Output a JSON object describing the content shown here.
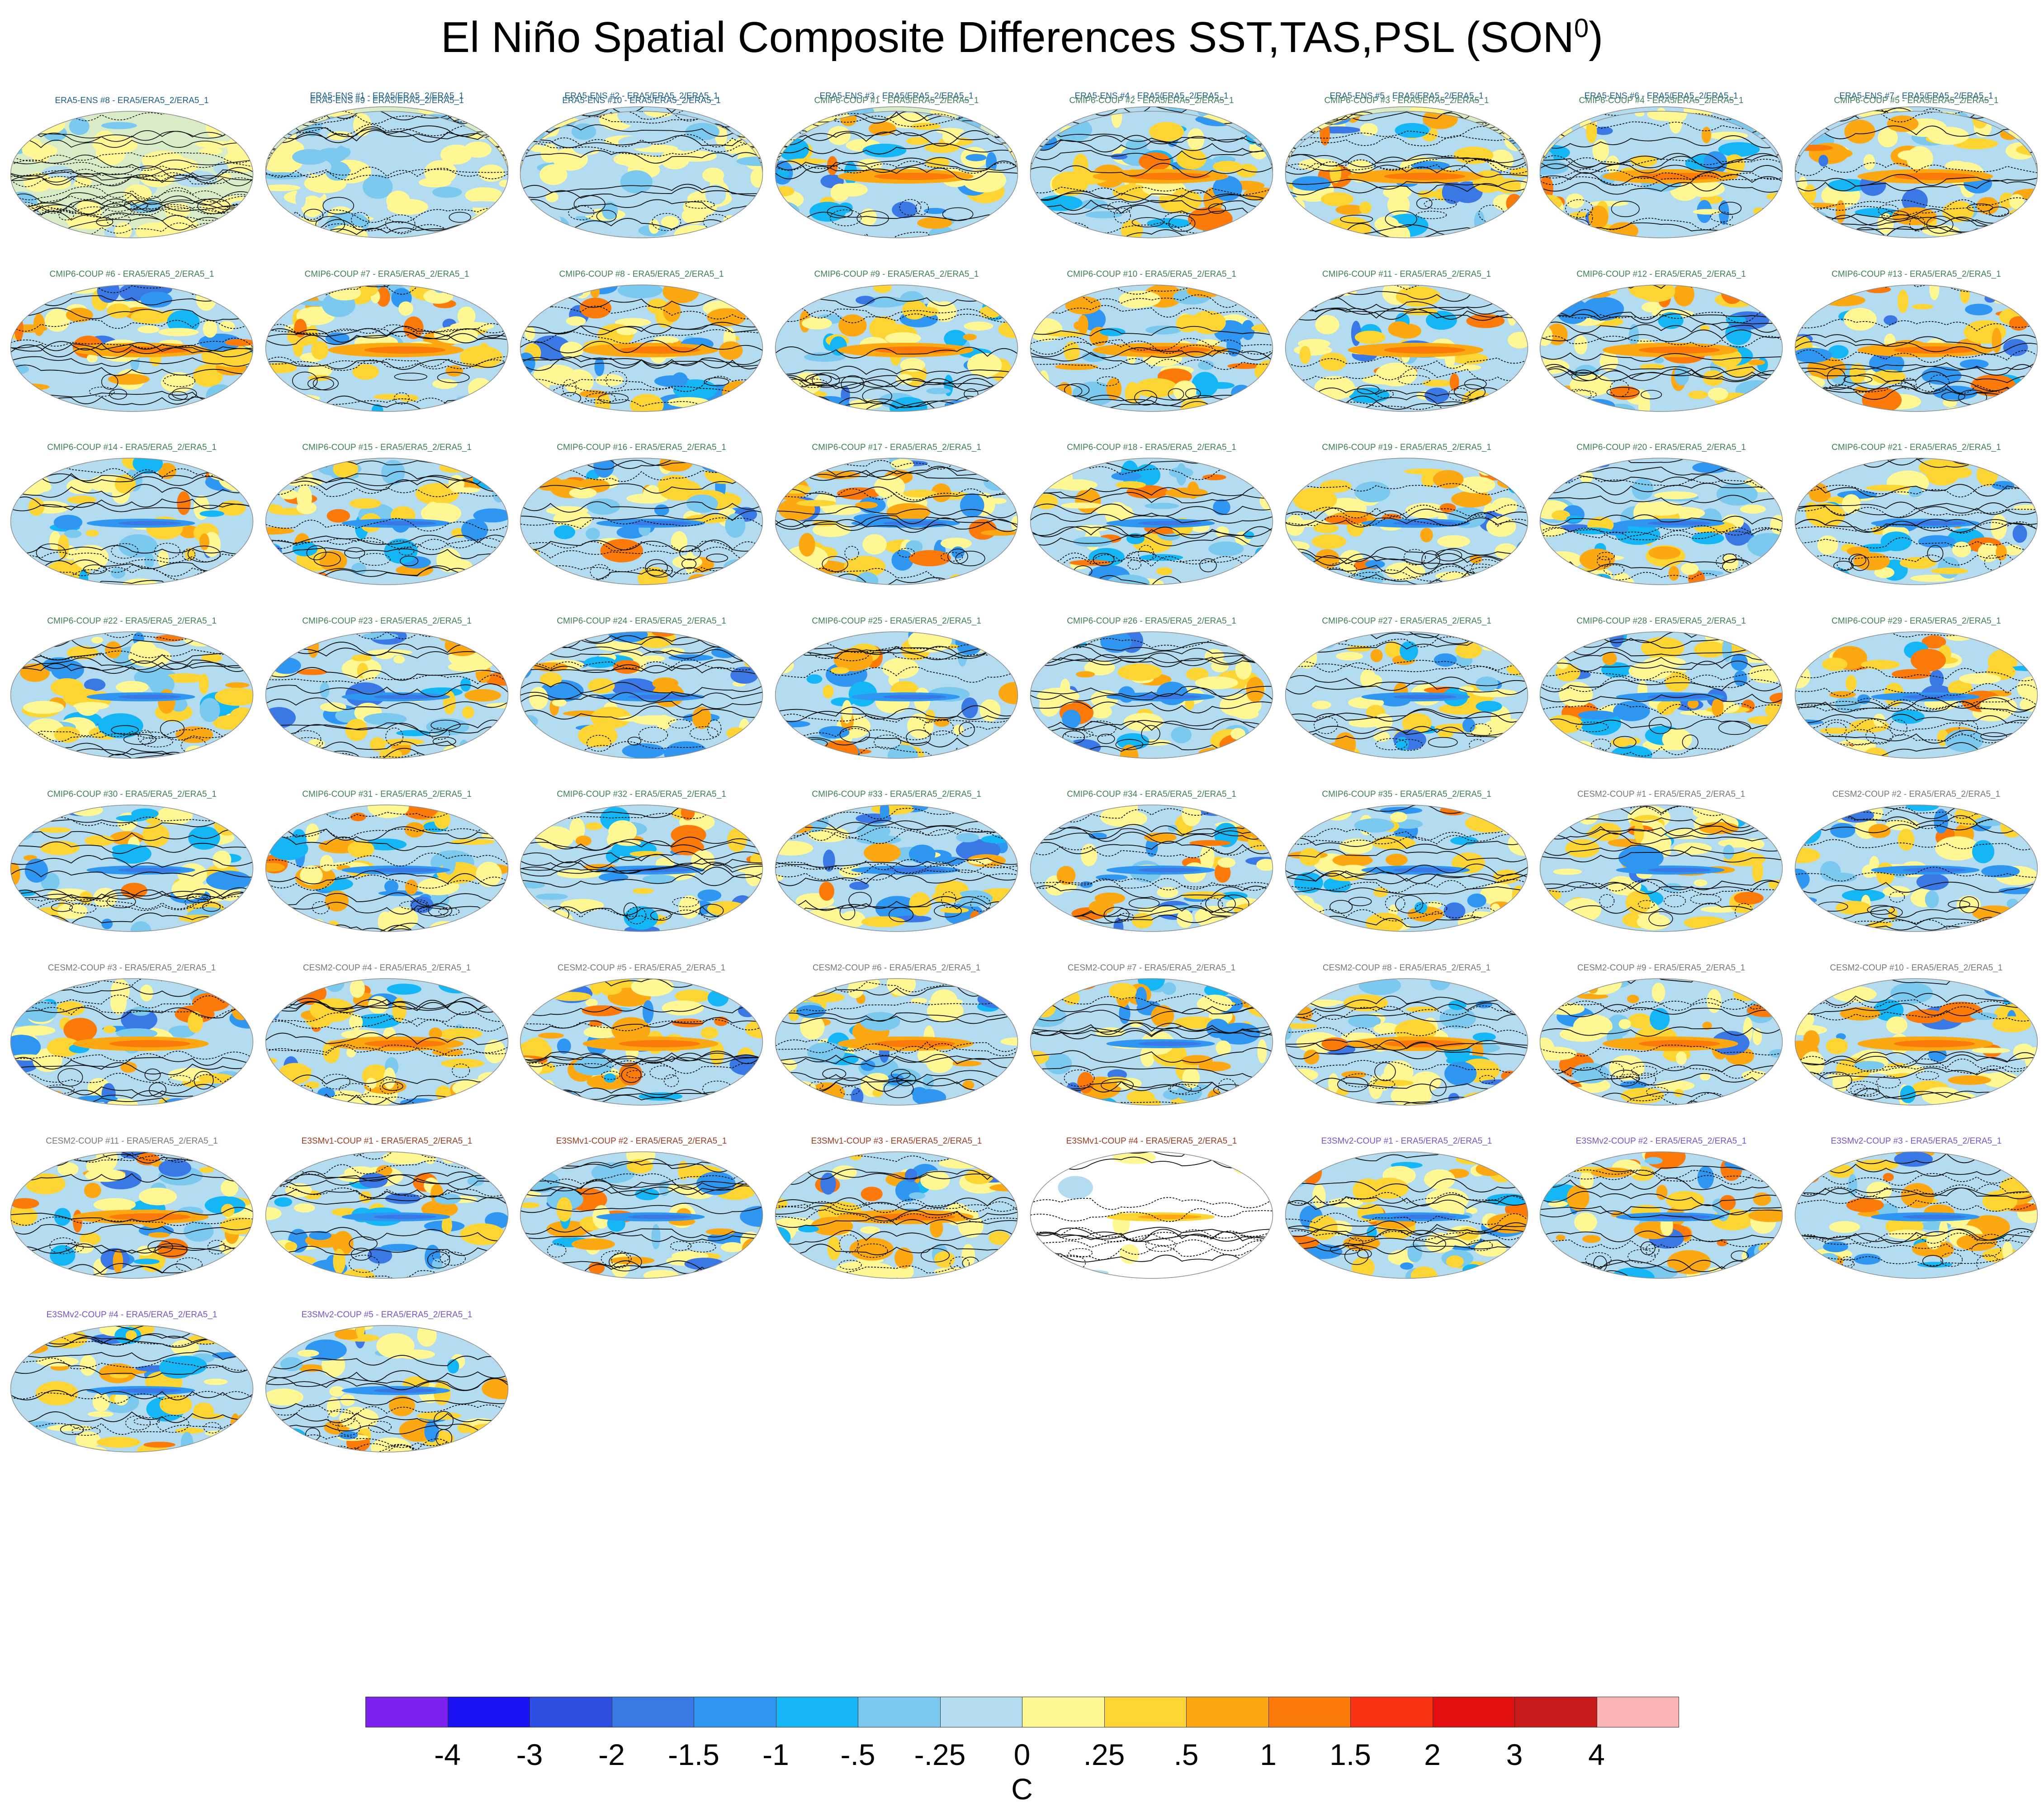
{
  "figure": {
    "title": "El Niño Spatial Composite Differences SST,TAS,PSL (SON",
    "title_sup": "0",
    "title_close": ")"
  },
  "group_colors": {
    "ERA5-ENS": "#1b5f87",
    "CMIP6-COUP": "#3f7f54",
    "CESM2-COUP": "#777777",
    "E3SMv1-COUP": "#9a3b1f",
    "E3SMv2-COUP": "#7a52c7"
  },
  "chart_data": {
    "type": "heatmap",
    "description_kind": "grid of global map panels with filled contour shading and line contours",
    "units": "C",
    "colorbar": {
      "levels": [
        "-4",
        "-3",
        "-2",
        "-1.5",
        "-1",
        "-.5",
        "-.25",
        "0",
        ".25",
        ".5",
        "1",
        "1.5",
        "2",
        "3",
        "4"
      ],
      "colors": [
        "#7b22ef",
        "#1a12f5",
        "#2e4fe0",
        "#3a78e6",
        "#2f96f2",
        "#15b6f6",
        "#7bc9ef",
        "#b4dcf1",
        "#fff694",
        "#fcd433",
        "#fca812",
        "#fb7a0a",
        "#f73313",
        "#e20f0f",
        "#c71b1b",
        "#fbb4b4"
      ]
    },
    "panels": [
      {
        "label": "ERA5-ENS    #1 - ERA5/ERA5_2/ERA5_1",
        "group": "ERA5-ENS",
        "variant": "noisy"
      },
      {
        "label": "ERA5-ENS    #2 - ERA5/ERA5_2/ERA5_1",
        "group": "ERA5-ENS",
        "variant": "noise"
      },
      {
        "label": "ERA5-ENS    #3 - ERA5/ERA5_2/ERA5_1",
        "group": "ERA5-ENS",
        "variant": "noisy"
      },
      {
        "label": "ERA5-ENS    #4 - ERA5/ERA5_2/ERA5_1",
        "group": "ERA5-ENS",
        "variant": "noise"
      },
      {
        "label": "ERA5-ENS    #5 - ERA5/ERA5_2/ERA5_1",
        "group": "ERA5-ENS",
        "variant": "noisy"
      },
      {
        "label": "ERA5-ENS    #6 - ERA5/ERA5_2/ERA5_1",
        "group": "ERA5-ENS",
        "variant": "noise"
      },
      {
        "label": "ERA5-ENS    #7 - ERA5/ERA5_2/ERA5_1",
        "group": "ERA5-ENS",
        "variant": "noise"
      },
      {
        "label": "ERA5-ENS    #8 - ERA5/ERA5_2/ERA5_1",
        "group": "ERA5-ENS",
        "variant": "noisy"
      },
      {
        "label": "ERA5-ENS    #9 - ERA5/ERA5_2/ERA5_1",
        "group": "ERA5-ENS",
        "variant": "noise"
      },
      {
        "label": "ERA5-ENS    #10 - ERA5/ERA5_2/ERA5_1",
        "group": "ERA5-ENS",
        "variant": "noise"
      },
      {
        "label": "CMIP6-COUP  #1 - ERA5/ERA5_2/ERA5_1",
        "group": "CMIP6-COUP",
        "variant": "strong"
      },
      {
        "label": "CMIP6-COUP  #2 - ERA5/ERA5_2/ERA5_1",
        "group": "CMIP6-COUP",
        "variant": "strong"
      },
      {
        "label": "CMIP6-COUP  #3 - ERA5/ERA5_2/ERA5_1",
        "group": "CMIP6-COUP",
        "variant": "strong"
      },
      {
        "label": "CMIP6-COUP  #4 - ERA5/ERA5_2/ERA5_1",
        "group": "CMIP6-COUP",
        "variant": "strong"
      },
      {
        "label": "CMIP6-COUP  #5 - ERA5/ERA5_2/ERA5_1",
        "group": "CMIP6-COUP",
        "variant": "strong"
      },
      {
        "label": "CMIP6-COUP  #6 - ERA5/ERA5_2/ERA5_1",
        "group": "CMIP6-COUP",
        "variant": "strong"
      },
      {
        "label": "CMIP6-COUP  #7 - ERA5/ERA5_2/ERA5_1",
        "group": "CMIP6-COUP",
        "variant": "strong"
      },
      {
        "label": "CMIP6-COUP  #8 - ERA5/ERA5_2/ERA5_1",
        "group": "CMIP6-COUP",
        "variant": "strong"
      },
      {
        "label": "CMIP6-COUP  #9 - ERA5/ERA5_2/ERA5_1",
        "group": "CMIP6-COUP",
        "variant": "strong"
      },
      {
        "label": "CMIP6-COUP  #10 - ERA5/ERA5_2/ERA5_1",
        "group": "CMIP6-COUP",
        "variant": "strong"
      },
      {
        "label": "CMIP6-COUP  #11 - ERA5/ERA5_2/ERA5_1",
        "group": "CMIP6-COUP",
        "variant": "strong"
      },
      {
        "label": "CMIP6-COUP  #12 - ERA5/ERA5_2/ERA5_1",
        "group": "CMIP6-COUP",
        "variant": "strong"
      },
      {
        "label": "CMIP6-COUP  #13 - ERA5/ERA5_2/ERA5_1",
        "group": "CMIP6-COUP",
        "variant": "strong"
      },
      {
        "label": "CMIP6-COUP  #14 - ERA5/ERA5_2/ERA5_1",
        "group": "CMIP6-COUP",
        "variant": "mixed"
      },
      {
        "label": "CMIP6-COUP  #15 - ERA5/ERA5_2/ERA5_1",
        "group": "CMIP6-COUP",
        "variant": "mixed"
      },
      {
        "label": "CMIP6-COUP  #16 - ERA5/ERA5_2/ERA5_1",
        "group": "CMIP6-COUP",
        "variant": "mixed"
      },
      {
        "label": "CMIP6-COUP  #17 - ERA5/ERA5_2/ERA5_1",
        "group": "CMIP6-COUP",
        "variant": "mixed"
      },
      {
        "label": "CMIP6-COUP  #18 - ERA5/ERA5_2/ERA5_1",
        "group": "CMIP6-COUP",
        "variant": "mixed"
      },
      {
        "label": "CMIP6-COUP  #19 - ERA5/ERA5_2/ERA5_1",
        "group": "CMIP6-COUP",
        "variant": "mixed"
      },
      {
        "label": "CMIP6-COUP  #20 - ERA5/ERA5_2/ERA5_1",
        "group": "CMIP6-COUP",
        "variant": "mixed"
      },
      {
        "label": "CMIP6-COUP  #21 - ERA5/ERA5_2/ERA5_1",
        "group": "CMIP6-COUP",
        "variant": "mixed"
      },
      {
        "label": "CMIP6-COUP  #22 - ERA5/ERA5_2/ERA5_1",
        "group": "CMIP6-COUP",
        "variant": "mixed"
      },
      {
        "label": "CMIP6-COUP  #23 - ERA5/ERA5_2/ERA5_1",
        "group": "CMIP6-COUP",
        "variant": "mixed"
      },
      {
        "label": "CMIP6-COUP  #24 - ERA5/ERA5_2/ERA5_1",
        "group": "CMIP6-COUP",
        "variant": "mixed"
      },
      {
        "label": "CMIP6-COUP  #25 - ERA5/ERA5_2/ERA5_1",
        "group": "CMIP6-COUP",
        "variant": "mixed"
      },
      {
        "label": "CMIP6-COUP  #26 - ERA5/ERA5_2/ERA5_1",
        "group": "CMIP6-COUP",
        "variant": "mixed"
      },
      {
        "label": "CMIP6-COUP  #27 - ERA5/ERA5_2/ERA5_1",
        "group": "CMIP6-COUP",
        "variant": "mixed"
      },
      {
        "label": "CMIP6-COUP  #28 - ERA5/ERA5_2/ERA5_1",
        "group": "CMIP6-COUP",
        "variant": "mixed"
      },
      {
        "label": "CMIP6-COUP  #29 - ERA5/ERA5_2/ERA5_1",
        "group": "CMIP6-COUP",
        "variant": "mixed"
      },
      {
        "label": "CMIP6-COUP  #30 - ERA5/ERA5_2/ERA5_1",
        "group": "CMIP6-COUP",
        "variant": "mixed"
      },
      {
        "label": "CMIP6-COUP  #31 - ERA5/ERA5_2/ERA5_1",
        "group": "CMIP6-COUP",
        "variant": "mixed"
      },
      {
        "label": "CMIP6-COUP  #32 - ERA5/ERA5_2/ERA5_1",
        "group": "CMIP6-COUP",
        "variant": "mixed"
      },
      {
        "label": "CMIP6-COUP  #33 - ERA5/ERA5_2/ERA5_1",
        "group": "CMIP6-COUP",
        "variant": "mixed"
      },
      {
        "label": "CMIP6-COUP  #34 - ERA5/ERA5_2/ERA5_1",
        "group": "CMIP6-COUP",
        "variant": "mixed"
      },
      {
        "label": "CMIP6-COUP  #35 - ERA5/ERA5_2/ERA5_1",
        "group": "CMIP6-COUP",
        "variant": "mixed"
      },
      {
        "label": "CESM2-COUP  #1 - ERA5/ERA5_2/ERA5_1",
        "group": "CESM2-COUP",
        "variant": "mixed"
      },
      {
        "label": "CESM2-COUP  #2 - ERA5/ERA5_2/ERA5_1",
        "group": "CESM2-COUP",
        "variant": "mixed"
      },
      {
        "label": "CESM2-COUP  #3 - ERA5/ERA5_2/ERA5_1",
        "group": "CESM2-COUP",
        "variant": "strong"
      },
      {
        "label": "CESM2-COUP  #4 - ERA5/ERA5_2/ERA5_1",
        "group": "CESM2-COUP",
        "variant": "strong"
      },
      {
        "label": "CESM2-COUP  #5 - ERA5/ERA5_2/ERA5_1",
        "group": "CESM2-COUP",
        "variant": "strong"
      },
      {
        "label": "CESM2-COUP  #6 - ERA5/ERA5_2/ERA5_1",
        "group": "CESM2-COUP",
        "variant": "strong"
      },
      {
        "label": "CESM2-COUP  #7 - ERA5/ERA5_2/ERA5_1",
        "group": "CESM2-COUP",
        "variant": "mixed"
      },
      {
        "label": "CESM2-COUP  #8 - ERA5/ERA5_2/ERA5_1",
        "group": "CESM2-COUP",
        "variant": "strong"
      },
      {
        "label": "CESM2-COUP  #9 - ERA5/ERA5_2/ERA5_1",
        "group": "CESM2-COUP",
        "variant": "strong"
      },
      {
        "label": "CESM2-COUP  #10 - ERA5/ERA5_2/ERA5_1",
        "group": "CESM2-COUP",
        "variant": "strong"
      },
      {
        "label": "CESM2-COUP  #11 - ERA5/ERA5_2/ERA5_1",
        "group": "CESM2-COUP",
        "variant": "strong"
      },
      {
        "label": "E3SMv1-COUP  #1 - ERA5/ERA5_2/ERA5_1",
        "group": "E3SMv1-COUP",
        "variant": "mixed"
      },
      {
        "label": "E3SMv1-COUP  #2 - ERA5/ERA5_2/ERA5_1",
        "group": "E3SMv1-COUP",
        "variant": "mixed"
      },
      {
        "label": "E3SMv1-COUP  #3 - ERA5/ERA5_2/ERA5_1",
        "group": "E3SMv1-COUP",
        "variant": "strong"
      },
      {
        "label": "E3SMv1-COUP  #4 - ERA5/ERA5_2/ERA5_1",
        "group": "E3SMv1-COUP",
        "variant": "sparse"
      },
      {
        "label": "E3SMv2-COUP  #1 - ERA5/ERA5_2/ERA5_1",
        "group": "E3SMv2-COUP",
        "variant": "mixed"
      },
      {
        "label": "E3SMv2-COUP  #2 - ERA5/ERA5_2/ERA5_1",
        "group": "E3SMv2-COUP",
        "variant": "mixed"
      },
      {
        "label": "E3SMv2-COUP  #3 - ERA5/ERA5_2/ERA5_1",
        "group": "E3SMv2-COUP",
        "variant": "mixed"
      },
      {
        "label": "E3SMv2-COUP  #4 - ERA5/ERA5_2/ERA5_1",
        "group": "E3SMv2-COUP",
        "variant": "mixed"
      },
      {
        "label": "E3SMv2-COUP  #5 - ERA5/ERA5_2/ERA5_1",
        "group": "E3SMv2-COUP",
        "variant": "mixed"
      }
    ]
  }
}
